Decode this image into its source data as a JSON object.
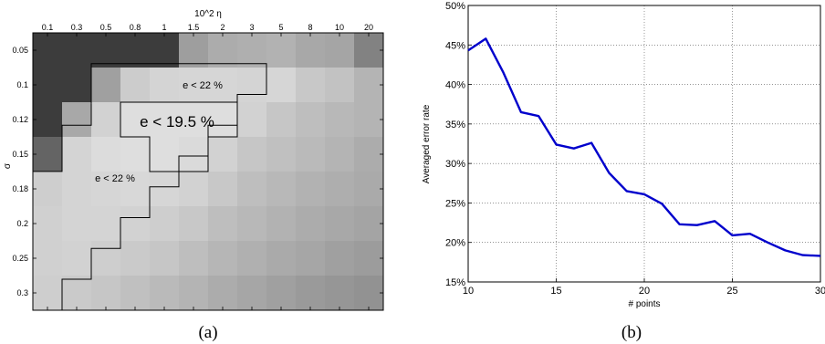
{
  "chart_data": [
    {
      "type": "heatmap",
      "caption": "(a)",
      "xlabel": "10^2 η",
      "ylabel": "σ",
      "x_categories": [
        "0.1",
        "0.3",
        "0.5",
        "0.8",
        "1",
        "1.5",
        "2",
        "3",
        "5",
        "8",
        "10",
        "20"
      ],
      "y_categories": [
        "0.05",
        "0.1",
        "0.12",
        "0.15",
        "0.18",
        "0.2",
        "0.25",
        "0.3"
      ],
      "grayscale_values": [
        [
          60,
          60,
          60,
          60,
          60,
          158,
          172,
          175,
          178,
          168,
          165,
          130
        ],
        [
          60,
          60,
          160,
          204,
          212,
          214,
          214,
          212,
          214,
          200,
          194,
          180
        ],
        [
          60,
          168,
          210,
          222,
          222,
          222,
          222,
          210,
          198,
          190,
          184,
          180
        ],
        [
          100,
          212,
          220,
          222,
          222,
          218,
          210,
          198,
          192,
          186,
          180,
          172
        ],
        [
          206,
          212,
          214,
          216,
          214,
          210,
          200,
          190,
          184,
          178,
          174,
          170
        ],
        [
          208,
          212,
          212,
          210,
          206,
          200,
          190,
          184,
          178,
          172,
          168,
          164
        ],
        [
          208,
          210,
          206,
          202,
          198,
          190,
          182,
          176,
          170,
          166,
          160,
          156
        ],
        [
          206,
          202,
          198,
          192,
          186,
          180,
          172,
          166,
          160,
          154,
          150,
          146
        ]
      ],
      "annotations": [
        {
          "text": "e < 22 %"
        },
        {
          "text": "e < 19.5 %"
        },
        {
          "text": "e < 22 %"
        }
      ]
    },
    {
      "type": "line",
      "caption": "(b)",
      "xlabel": "# points",
      "ylabel": "Averaged error rate",
      "xlim": [
        10,
        30
      ],
      "ylim": [
        15,
        50
      ],
      "x_ticks": [
        "10",
        "15",
        "20",
        "25",
        "30"
      ],
      "y_ticks": [
        "15%",
        "20%",
        "25%",
        "30%",
        "35%",
        "40%",
        "45%",
        "50%"
      ],
      "grid": "dotted",
      "series": [
        {
          "color": "#0000cc",
          "x": [
            10,
            11,
            12,
            13,
            14,
            15,
            16,
            17,
            18,
            19,
            20,
            21,
            22,
            23,
            24,
            25,
            26,
            27,
            28,
            29,
            30
          ],
          "values": [
            44.3,
            45.8,
            41.5,
            36.5,
            36.0,
            32.4,
            31.9,
            32.6,
            28.8,
            26.5,
            26.1,
            24.9,
            22.3,
            22.2,
            22.7,
            20.9,
            21.1,
            20.0,
            19.0,
            18.4,
            18.3
          ]
        }
      ]
    }
  ]
}
